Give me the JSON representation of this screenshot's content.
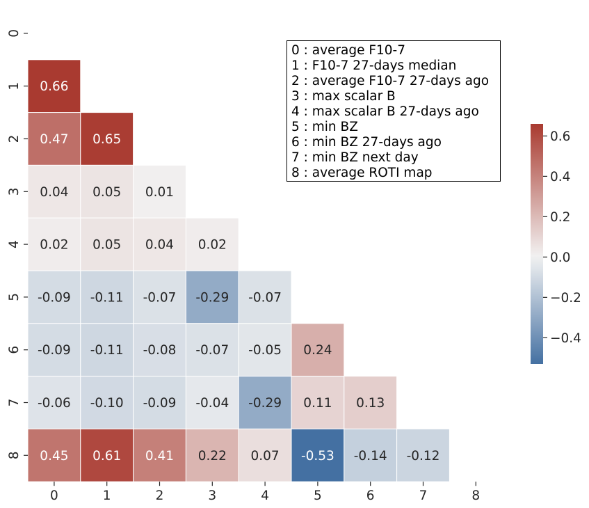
{
  "chart_data": {
    "type": "heatmap",
    "mask": "upper-triangle-including-diagonal",
    "row_labels": [
      "0",
      "1",
      "2",
      "3",
      "4",
      "5",
      "6",
      "7",
      "8"
    ],
    "col_labels": [
      "0",
      "1",
      "2",
      "3",
      "4",
      "5",
      "6",
      "7",
      "8"
    ],
    "rows": [
      [],
      [
        0.66
      ],
      [
        0.47,
        0.65
      ],
      [
        0.04,
        0.05,
        0.01
      ],
      [
        0.02,
        0.05,
        0.04,
        0.02
      ],
      [
        -0.09,
        -0.11,
        -0.07,
        -0.29,
        -0.07
      ],
      [
        -0.09,
        -0.11,
        -0.08,
        -0.07,
        -0.05,
        0.24
      ],
      [
        -0.06,
        -0.1,
        -0.09,
        -0.04,
        -0.29,
        0.11,
        0.13
      ],
      [
        0.45,
        0.61,
        0.41,
        0.22,
        0.07,
        -0.53,
        -0.14,
        -0.12
      ]
    ],
    "value_labels": [
      [],
      [
        "0.66"
      ],
      [
        "0.47",
        "0.65"
      ],
      [
        "0.04",
        "0.05",
        "0.01"
      ],
      [
        "0.02",
        "0.05",
        "0.04",
        "0.02"
      ],
      [
        "-0.09",
        "-0.11",
        "-0.07",
        "-0.29",
        "-0.07"
      ],
      [
        "-0.09",
        "-0.11",
        "-0.08",
        "-0.07",
        "-0.05",
        "0.24"
      ],
      [
        "-0.06",
        "-0.10",
        "-0.09",
        "-0.04",
        "-0.29",
        "0.11",
        "0.13"
      ],
      [
        "0.45",
        "0.61",
        "0.41",
        "0.22",
        "0.07",
        "-0.53",
        "-0.14",
        "-0.12"
      ]
    ],
    "colormap": {
      "low": "#4470a2",
      "mid": "#f2f2f2",
      "high": "#a93a30"
    },
    "vmin": -0.53,
    "vmax": 0.66,
    "colorbar": {
      "ticks": [
        0.6,
        0.4,
        0.2,
        0.0,
        -0.2,
        -0.4
      ],
      "tick_labels": [
        "0.6",
        "0.4",
        "0.2",
        "0.0",
        "−0.2",
        "−0.4"
      ]
    },
    "legend": [
      "0 : average F10-7",
      "1 : F10-7 27-days median",
      "2 : average F10-7 27-days ago",
      "3 : max scalar B",
      "4 : max scalar B 27-days ago",
      "5 : min BZ",
      "6 : min BZ 27-days ago",
      "7 : min BZ next day",
      "8 : average ROTI map"
    ],
    "legend_placement": "top-right"
  }
}
